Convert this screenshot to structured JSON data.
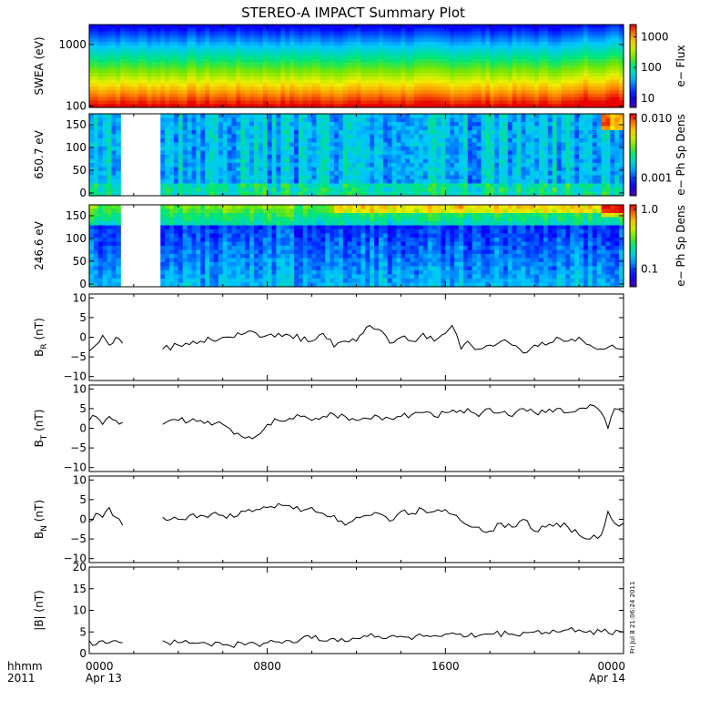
{
  "figure": {
    "title": "STEREO-A IMPACT Summary Plot",
    "corner_label_top": "hhmm",
    "corner_label_bottom": "2011",
    "stamp": "Fri Jul  8 21:06:24 2011"
  },
  "chart_data": [
    {
      "type": "heatmap",
      "panel": "swea",
      "ylabel": "SWEA (eV)",
      "yscale": "log",
      "ylim": [
        95,
        2100
      ],
      "yticks": [
        "1000",
        "100"
      ],
      "colorbar": {
        "label": "e− Flux",
        "scale": "log",
        "range": [
          5,
          2500
        ],
        "ticks": [
          "1000",
          "100",
          "10"
        ]
      },
      "x_hours": [
        0,
        1,
        2,
        3,
        4,
        5,
        6,
        7,
        8,
        9,
        10,
        11,
        12,
        13,
        14,
        15,
        16,
        17,
        18,
        19,
        20,
        21,
        22,
        23,
        24
      ],
      "data_gap_hours": [],
      "energies_eV": [
        100,
        130,
        170,
        220,
        290,
        380,
        500,
        650,
        850,
        1100,
        1450,
        1900
      ],
      "flux_profile": [
        1800,
        1100,
        650,
        380,
        220,
        130,
        75,
        45,
        28,
        18,
        11,
        6
      ]
    },
    {
      "type": "heatmap",
      "panel": "pad650",
      "ylabel": "650.7 eV",
      "ylim": [
        0,
        180
      ],
      "yticks": [
        "150",
        "100",
        "50",
        "0"
      ],
      "colorbar": {
        "label": "e− Ph Sp Dens",
        "scale": "log",
        "range": [
          0.0005,
          0.012
        ],
        "ticks": [
          "0.010",
          "0.001"
        ]
      },
      "data_gap_hours": [
        [
          1.5,
          3.2
        ]
      ]
    },
    {
      "type": "heatmap",
      "panel": "pad246",
      "ylabel": "246.6 eV",
      "ylim": [
        0,
        180
      ],
      "yticks": [
        "150",
        "100",
        "50",
        "0"
      ],
      "colorbar": {
        "label": "e− Ph Sp Dens",
        "scale": "log",
        "range": [
          0.05,
          1.2
        ],
        "ticks": [
          "1.0",
          "0.1"
        ]
      },
      "data_gap_hours": [
        [
          1.5,
          3.2
        ]
      ]
    },
    {
      "type": "line",
      "panel": "br",
      "ylabel_main": "B",
      "ylabel_sub": "R",
      "ylabel_unit": " (nT)",
      "ylim": [
        -11,
        11
      ],
      "yticks": [
        "10",
        "5",
        "0",
        "−5",
        "−10"
      ],
      "x_hours": [
        0,
        0.3,
        0.6,
        0.9,
        1.2,
        1.5,
        3.3,
        4,
        5,
        6,
        7,
        8,
        8.5,
        9,
        10,
        10.5,
        11,
        11.5,
        12,
        12.3,
        12.6,
        13,
        13.5,
        14,
        14.5,
        15,
        15.5,
        16,
        16.3,
        16.7,
        17,
        17.5,
        18,
        18.5,
        19,
        19.5,
        20,
        20.5,
        21,
        21.5,
        22,
        22.5,
        23,
        23.5,
        24
      ],
      "values": [
        -3.5,
        -2,
        0.5,
        -2,
        0,
        -1.5,
        -3,
        -2,
        -1,
        0,
        1,
        0.5,
        1,
        0.5,
        -1,
        1,
        -2.5,
        -1,
        -1,
        1,
        3,
        2,
        -1.5,
        0,
        -1,
        1,
        -1,
        1,
        3,
        -3,
        -1,
        -3,
        -2,
        -1,
        -2,
        -4,
        -2,
        -2,
        0,
        -1,
        0,
        -2,
        -3,
        -2,
        -3
      ]
    },
    {
      "type": "line",
      "panel": "bt",
      "ylabel_main": "B",
      "ylabel_sub": "T",
      "ylabel_unit": " (nT)",
      "ylim": [
        -11,
        11
      ],
      "yticks": [
        "10",
        "5",
        "0",
        "−5",
        "−10"
      ],
      "x_hours": [
        0,
        0.3,
        0.6,
        0.9,
        1.2,
        1.5,
        3.3,
        4,
        5,
        6,
        6.5,
        7,
        7.5,
        8,
        8.5,
        9,
        9.5,
        10,
        10.5,
        11,
        11.5,
        12,
        12.5,
        13,
        13.5,
        14,
        14.5,
        15,
        15.5,
        16,
        16.5,
        17,
        17.5,
        18,
        18.5,
        19,
        19.5,
        20,
        20.5,
        21,
        21.5,
        22,
        22.5,
        23,
        23.3,
        23.6,
        24
      ],
      "values": [
        2,
        3,
        1,
        3,
        2,
        1.5,
        1,
        2,
        2,
        1,
        -1.5,
        -2.5,
        -2,
        1,
        2,
        2.5,
        3,
        2,
        3,
        3.5,
        3,
        2,
        2.5,
        3,
        2.5,
        3,
        3.5,
        4,
        3,
        4,
        4,
        5,
        3,
        5,
        4,
        3,
        5,
        4,
        4,
        5,
        4,
        5,
        6,
        4,
        0,
        5,
        4
      ]
    },
    {
      "type": "line",
      "panel": "bn",
      "ylabel_main": "B",
      "ylabel_sub": "N",
      "ylabel_unit": " (nT)",
      "ylim": [
        -11,
        11
      ],
      "yticks": [
        "10",
        "5",
        "0",
        "−5",
        "−10"
      ],
      "x_hours": [
        0,
        0.3,
        0.6,
        0.9,
        1.2,
        1.5,
        3.3,
        4,
        5,
        6,
        6.5,
        7,
        7.5,
        8,
        8.5,
        9,
        9.5,
        10,
        10.5,
        11,
        11.5,
        12,
        12.5,
        13,
        13.5,
        14,
        14.5,
        15,
        15.5,
        16,
        16.5,
        17,
        17.5,
        18,
        18.5,
        19,
        19.5,
        20,
        20.5,
        21,
        21.5,
        22,
        22.5,
        23,
        23.3,
        23.6,
        24
      ],
      "values": [
        -0.5,
        1.5,
        0.5,
        3,
        0.5,
        -1.5,
        0.5,
        0,
        1,
        1,
        0.5,
        2,
        2.5,
        3,
        4,
        3.5,
        2,
        3,
        1.5,
        1,
        -1.5,
        0.5,
        1,
        1.5,
        -0.5,
        2,
        1.5,
        2.5,
        2,
        2.5,
        1,
        -1.5,
        -2,
        -3,
        -1,
        -2,
        0,
        -3,
        -2,
        -1,
        -2,
        -4,
        -5,
        -4,
        2,
        -1,
        -1
      ]
    },
    {
      "type": "line",
      "panel": "bmag",
      "ylabel_main": "|B|",
      "ylabel_sub": "",
      "ylabel_unit": " (nT)",
      "ylim": [
        0,
        20
      ],
      "yticks": [
        "20",
        "15",
        "10",
        "5",
        "0"
      ],
      "x_hours": [
        0,
        0.3,
        0.6,
        0.9,
        1.2,
        1.5,
        3.3,
        4,
        5,
        6,
        7,
        8,
        9,
        10,
        11,
        12,
        13,
        14,
        15,
        16,
        17,
        18,
        19,
        20,
        21,
        22,
        23,
        24
      ],
      "values": [
        3,
        2,
        3,
        2.5,
        3,
        2.5,
        3,
        2.5,
        2.5,
        2,
        2,
        2.5,
        3,
        3.5,
        3.5,
        3.5,
        4,
        4,
        4,
        4.5,
        4,
        4.5,
        4.5,
        5,
        5,
        5.5,
        5,
        5
      ]
    }
  ],
  "x_axis": {
    "tick_labels": [
      "0000",
      "0800",
      "1600",
      "0000"
    ],
    "tick_hours": [
      0,
      8,
      16,
      24
    ],
    "date_labels": [
      "Apr 13",
      "Apr 14"
    ]
  }
}
